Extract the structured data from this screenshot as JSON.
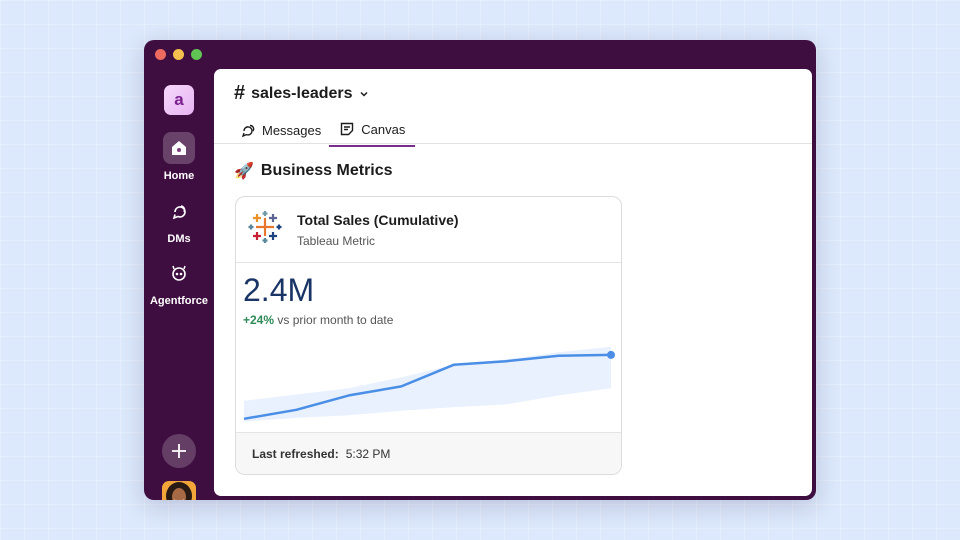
{
  "workspace": {
    "initial": "a"
  },
  "sidebar": {
    "items": [
      {
        "label": "Home",
        "icon": "home-icon"
      },
      {
        "label": "DMs",
        "icon": "dm-icon"
      },
      {
        "label": "Agentforce",
        "icon": "agentforce-icon"
      }
    ],
    "add_icon": "plus-icon"
  },
  "channel": {
    "hash": "#",
    "name": "sales-leaders",
    "tabs": [
      {
        "label": "Messages",
        "icon": "messages-icon"
      },
      {
        "label": "Canvas",
        "icon": "canvas-icon"
      }
    ]
  },
  "canvas": {
    "section_emoji": "🚀",
    "section_title": "Business Metrics",
    "card": {
      "title": "Total Sales (Cumulative)",
      "subtitle": "Tableau Metric",
      "value": "2.4M",
      "change": "+24%",
      "change_suffix": " vs prior month to date",
      "refreshed_label": "Last refreshed:",
      "refreshed_time": "5:32 PM"
    }
  },
  "colors": {
    "sidebar_bg": "#3f0e40",
    "accent": "#7b2d8e",
    "positive": "#2e8a57",
    "line": "#4a8ee6",
    "band": "#e8f1fd"
  },
  "chart_data": {
    "type": "line",
    "title": "",
    "xlabel": "",
    "ylabel": "",
    "ylim": [
      0,
      100
    ],
    "series": [
      {
        "values": [
          8,
          18,
          34,
          44,
          68,
          72,
          78,
          79
        ]
      }
    ],
    "band": {
      "upper": [
        28,
        35,
        42,
        54,
        68,
        74,
        82,
        88
      ],
      "lower": [
        5,
        9,
        12,
        17,
        21,
        24,
        34,
        42
      ]
    },
    "grid": false
  }
}
